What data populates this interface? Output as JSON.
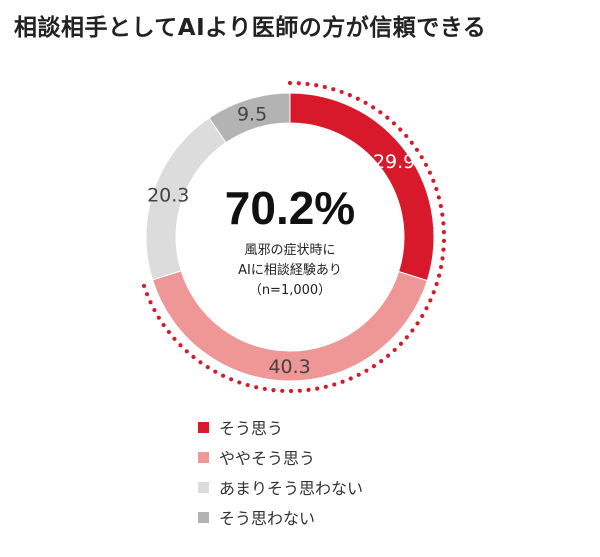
{
  "title": "相談相手としてAIより医師の方が信頼できる",
  "center": {
    "big_value": "70.2%",
    "caption_lines": [
      "風邪の症状時に",
      "AIに相談経験あり",
      "（n=1,000）"
    ]
  },
  "chart_data": {
    "type": "pie",
    "donut": true,
    "title": "相談相手としてAIより医師の方が信頼できる",
    "categories": [
      "そう思う",
      "ややそう思う",
      "あまりそう思わない",
      "そう思わない"
    ],
    "values": [
      29.9,
      40.3,
      20.3,
      9.5
    ],
    "value_labels": [
      "29.9",
      "40.3",
      "20.3",
      "9.5"
    ],
    "colors": [
      "#d7192b",
      "#ef9696",
      "#dcdcdc",
      "#b3b3b3"
    ],
    "label_colors": [
      "#ffffff",
      "#444444",
      "#444444",
      "#444444"
    ],
    "highlight": {
      "total_label": "70.2%",
      "categories": [
        "そう思う",
        "ややそう思う"
      ],
      "style": "dotted-arc",
      "color": "#d7192b"
    },
    "legend_position": "bottom"
  }
}
